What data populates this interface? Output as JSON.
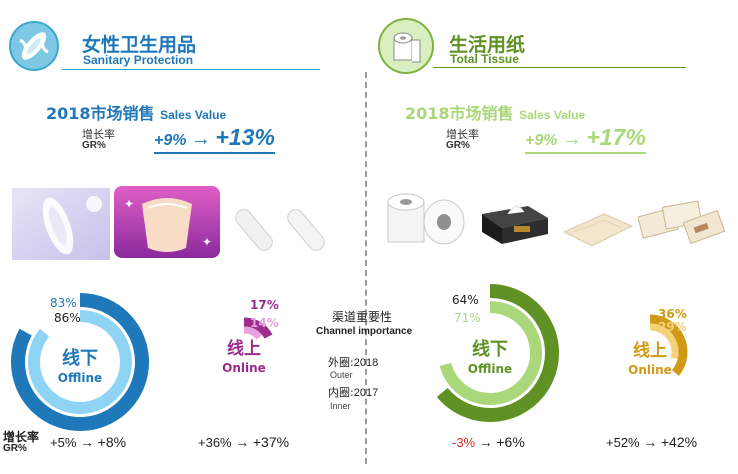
{
  "colors": {
    "blue": "#1f78b9",
    "blue_light": "#8fd4f5",
    "blue_mid": "#2a9ad8",
    "purple": "#9c2b8e",
    "purple_light": "#e7a3dd",
    "green": "#5f9124",
    "green_light": "#a9d77a",
    "gold": "#cf9b16",
    "gold_light": "#f5d27a",
    "teal_line": "#26a9c8",
    "red": "#d9261c"
  },
  "left": {
    "title_cn": "女性卫生用品",
    "title_en": "Sanitary Protection",
    "icon": "sanitary-pad-icon",
    "sales_cn": "2018市场销售",
    "sales_en": "Sales Value",
    "gr_cn": "增长率",
    "gr_en": "GR%",
    "gr_from": "+9%",
    "gr_to": "+13%"
  },
  "right": {
    "title_cn": "生活用纸",
    "title_en": "Total Tissue",
    "icon": "toilet-roll-icon",
    "sales_cn": "2018市场销售",
    "sales_en": "Sales Value",
    "gr_cn": "增长率",
    "gr_en": "GR%",
    "gr_from": "+9%",
    "gr_to": "+17%"
  },
  "legend": {
    "title_cn": "渠道重要性",
    "title_en": "Channel importance",
    "outer_cn": "外圈:",
    "outer_year": "2018",
    "outer_en": "Outer",
    "inner_cn": "内圈:",
    "inner_year": "2017",
    "inner_en": "Inner"
  },
  "bottom": {
    "gr_cn": "增长率",
    "gr_en": "GR%",
    "arrow": "→"
  },
  "chart_data": [
    {
      "type": "pie",
      "category": "Sanitary Protection",
      "channel_cn": "线下",
      "channel_en": "Offline",
      "outer_2018": 83,
      "inner_2017": 86,
      "outer_label": "83%",
      "inner_label": "86%",
      "growth_from": "+5%",
      "growth_to": "+8%",
      "color": "#1f78b9",
      "color_inner": "#8fd4f5"
    },
    {
      "type": "pie",
      "category": "Sanitary Protection",
      "channel_cn": "线上",
      "channel_en": "Online",
      "outer_2018": 17,
      "inner_2017": 14,
      "outer_label": "17%",
      "inner_label": "14%",
      "growth_from": "+36%",
      "growth_to": "+37%",
      "color": "#9c2b8e",
      "color_inner": "#e7a3dd"
    },
    {
      "type": "pie",
      "category": "Total Tissue",
      "channel_cn": "线下",
      "channel_en": "Offline",
      "outer_2018": 64,
      "inner_2017": 71,
      "outer_label": "64%",
      "inner_label": "71%",
      "growth_from": "-3%",
      "growth_to": "+6%",
      "color": "#5f9124",
      "color_inner": "#a9d77a"
    },
    {
      "type": "pie",
      "category": "Total Tissue",
      "channel_cn": "线上",
      "channel_en": "Online",
      "outer_2018": 36,
      "inner_2017": 29,
      "outer_label": "36%",
      "inner_label": "29%",
      "growth_from": "+52%",
      "growth_to": "+42%",
      "color": "#cf9b16",
      "color_inner": "#f5d27a"
    }
  ],
  "products": {
    "left": [
      "sanitary-pad-product",
      "panty-liner-product",
      "tampons-product"
    ],
    "right": [
      "toilet-roll-product",
      "tissue-box-product",
      "napkin-product",
      "handkerchief-pack-product"
    ]
  }
}
